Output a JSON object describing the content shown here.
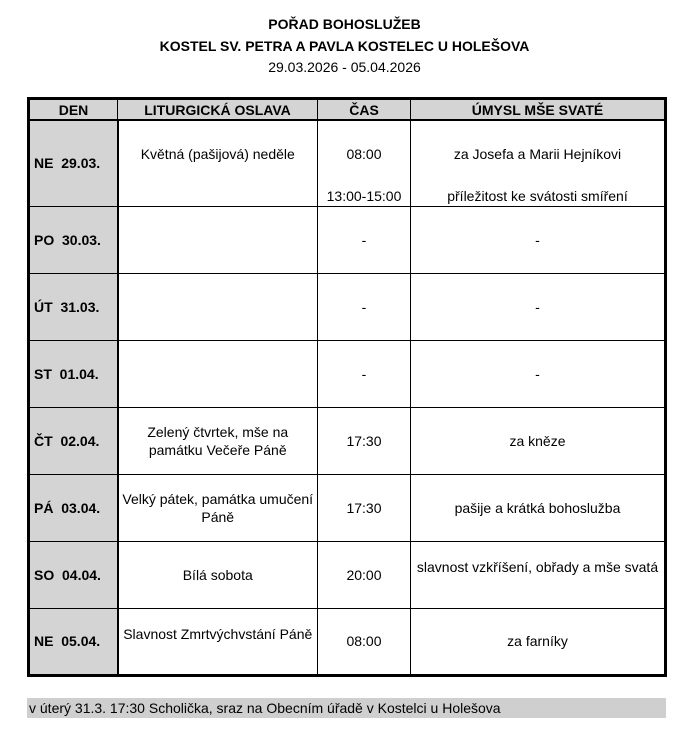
{
  "header": {
    "title": "POŘAD BOHOSLUŽEB",
    "subtitle": "KOSTEL SV. PETRA A PAVLA KOSTELEC U HOLEŠOVA",
    "dates": "29.03.2026 - 05.04.2026"
  },
  "table": {
    "columns": [
      "DEN",
      "LITURGICKÁ OSLAVA",
      "ČAS",
      "ÚMYSL MŠE SVATÉ"
    ],
    "rows": [
      {
        "day": "NE  29.03.",
        "celebration": "Květná (pašijová) neděle",
        "time": "08:00",
        "intention": "za Josefa a Marii Hejníkovi",
        "time2": "13:00-15:00",
        "intention2": "příležitost ke svátosti smíření"
      },
      {
        "day": "PO  30.03.",
        "celebration": "",
        "time": "-",
        "intention": "-"
      },
      {
        "day": "ÚT  31.03.",
        "celebration": "",
        "time": "-",
        "intention": "-"
      },
      {
        "day": "ST  01.04.",
        "celebration": "",
        "time": "-",
        "intention": "-"
      },
      {
        "day": "ČT  02.04.",
        "celebration": "Zelený čtvrtek, mše na památku Večeře Páně",
        "time": "17:30",
        "intention": "za kněze"
      },
      {
        "day": "PÁ  03.04.",
        "celebration": "Velký pátek, památka umučení Páně",
        "time": "17:30",
        "intention": "pašije a krátká bohoslužba"
      },
      {
        "day": "SO  04.04.",
        "celebration": "Bílá sobota",
        "time": "20:00",
        "intention": "slavnost vzkříšení, obřady a mše svatá"
      },
      {
        "day": "NE  05.04.",
        "celebration": "Slavnost Zmrtvýchvstání Páně",
        "time": "08:00",
        "intention": "za farníky"
      }
    ]
  },
  "footer": {
    "note": "v úterý 31.3. 17:30 Scholička,  sraz na Obecním úřadě v Kostelci u Holešova"
  }
}
